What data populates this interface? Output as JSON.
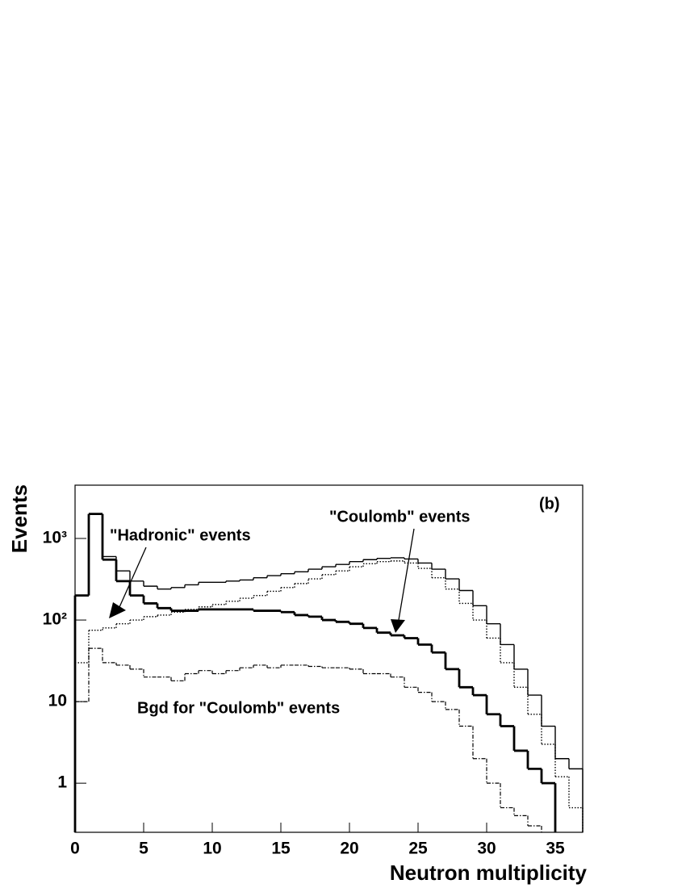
{
  "chart_data": {
    "type": "histogram",
    "label": "(b)",
    "xlabel": "Neutron multiplicity",
    "ylabel": "Events",
    "annotations": [
      "\"Hadronic\" events",
      "\"Coulomb\" events",
      "Bgd for \"Coulomb\"  events"
    ],
    "log_y": true,
    "xlim": [
      0,
      37
    ],
    "ylim": [
      0.25,
      4500
    ],
    "xticks": [
      0,
      5,
      10,
      15,
      20,
      25,
      30,
      35
    ],
    "yticks": [
      1,
      10,
      {
        "value": 100,
        "label": "10²"
      },
      {
        "value": 1000,
        "label": "10³"
      }
    ],
    "bins": [
      0,
      1,
      2,
      3,
      4,
      5,
      6,
      7,
      8,
      9,
      10,
      11,
      12,
      13,
      14,
      15,
      16,
      17,
      18,
      19,
      20,
      21,
      22,
      23,
      24,
      25,
      26,
      27,
      28,
      29,
      30,
      31,
      32,
      33,
      34,
      35,
      36,
      37
    ],
    "series": [
      {
        "color": "#000000",
        "line_width": 1.4,
        "dash": "solid",
        "values": [
          200,
          2000,
          600,
          400,
          300,
          260,
          240,
          250,
          270,
          290,
          290,
          300,
          310,
          330,
          350,
          370,
          390,
          420,
          450,
          480,
          520,
          550,
          570,
          580,
          560,
          500,
          420,
          320,
          230,
          150,
          90,
          50,
          25,
          12,
          5,
          2,
          1.5
        ]
      },
      {
        "color": "#000000",
        "line_width": 2.8,
        "dash": "solid",
        "values": [
          200,
          2000,
          550,
          300,
          200,
          160,
          140,
          130,
          130,
          135,
          135,
          135,
          135,
          130,
          130,
          125,
          115,
          110,
          100,
          95,
          90,
          80,
          70,
          65,
          60,
          50,
          40,
          25,
          15,
          12,
          7,
          5,
          2.5,
          1.5,
          1,
          null,
          null
        ]
      },
      {
        "color": "#000000",
        "line_width": 1.4,
        "dash": "dotted",
        "values": [
          30,
          75,
          80,
          90,
          100,
          110,
          115,
          125,
          135,
          145,
          155,
          170,
          185,
          200,
          225,
          250,
          280,
          320,
          360,
          400,
          450,
          490,
          520,
          530,
          500,
          430,
          330,
          240,
          160,
          100,
          60,
          30,
          15,
          7,
          3,
          1.2,
          0.5
        ]
      },
      {
        "color": "#000000",
        "line_width": 1.2,
        "dash": "dashdot",
        "values": [
          10,
          45,
          30,
          28,
          25,
          20,
          20,
          18,
          22,
          24,
          22,
          24,
          26,
          28,
          26,
          28,
          28,
          27,
          26,
          26,
          25,
          22,
          22,
          20,
          15,
          13,
          10,
          8,
          5,
          2,
          1,
          0.5,
          0.4,
          0.3,
          null,
          null,
          null
        ]
      }
    ]
  }
}
